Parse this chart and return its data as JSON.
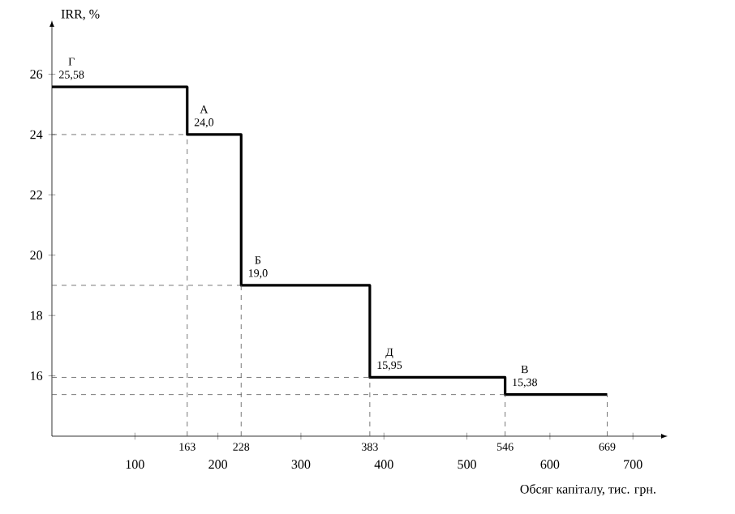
{
  "chart_data": {
    "type": "step",
    "xlabel": "Обсяг капіталу, тис. грн.",
    "ylabel": "IRR, %",
    "xlim": [
      0,
      735
    ],
    "ylim": [
      14,
      27.6
    ],
    "xticks": [
      100,
      200,
      300,
      400,
      500,
      600,
      700
    ],
    "yticks": [
      16,
      18,
      20,
      22,
      24,
      26
    ],
    "series": [
      {
        "color": "#000000",
        "x": [
          0,
          163,
          228,
          383,
          546,
          669
        ],
        "values": [
          25.58,
          24.0,
          19.0,
          15.95,
          15.38,
          15.38
        ],
        "value_labels": [
          "25,58",
          "24,0",
          "19,0",
          "15,95",
          "15,38",
          null
        ]
      }
    ],
    "annotations": [
      {
        "text": "Г",
        "x": 0,
        "y": 25.58
      },
      {
        "text": "А",
        "x": 163,
        "y": 24.0
      },
      {
        "text": "Б",
        "x": 228,
        "y": 19.0
      },
      {
        "text": "Д",
        "x": 383,
        "y": 15.95
      },
      {
        "text": "В",
        "x": 546,
        "y": 15.38
      },
      {
        "text": "163",
        "x": 163,
        "y": 14
      },
      {
        "text": "228",
        "x": 228,
        "y": 14
      },
      {
        "text": "383",
        "x": 383,
        "y": 14
      },
      {
        "text": "546",
        "x": 546,
        "y": 14
      },
      {
        "text": "669",
        "x": 669,
        "y": 14
      }
    ],
    "ref_lines": [
      {
        "axis": "y",
        "value": 24.0,
        "line_style": "dashed",
        "color": "#555555"
      },
      {
        "axis": "y",
        "value": 19.0,
        "line_style": "dashed",
        "color": "#555555"
      },
      {
        "axis": "y",
        "value": 15.95,
        "line_style": "dashed",
        "color": "#555555"
      },
      {
        "axis": "y",
        "value": 15.38,
        "line_style": "dashed",
        "color": "#555555"
      },
      {
        "axis": "x",
        "value": 163,
        "line_style": "dashed",
        "color": "#555555"
      },
      {
        "axis": "x",
        "value": 228,
        "line_style": "dashed",
        "color": "#555555"
      },
      {
        "axis": "x",
        "value": 383,
        "line_style": "dashed",
        "color": "#555555"
      },
      {
        "axis": "x",
        "value": 546,
        "line_style": "dashed",
        "color": "#555555"
      },
      {
        "axis": "x",
        "value": 669,
        "line_style": "dashed",
        "color": "#555555"
      }
    ]
  }
}
